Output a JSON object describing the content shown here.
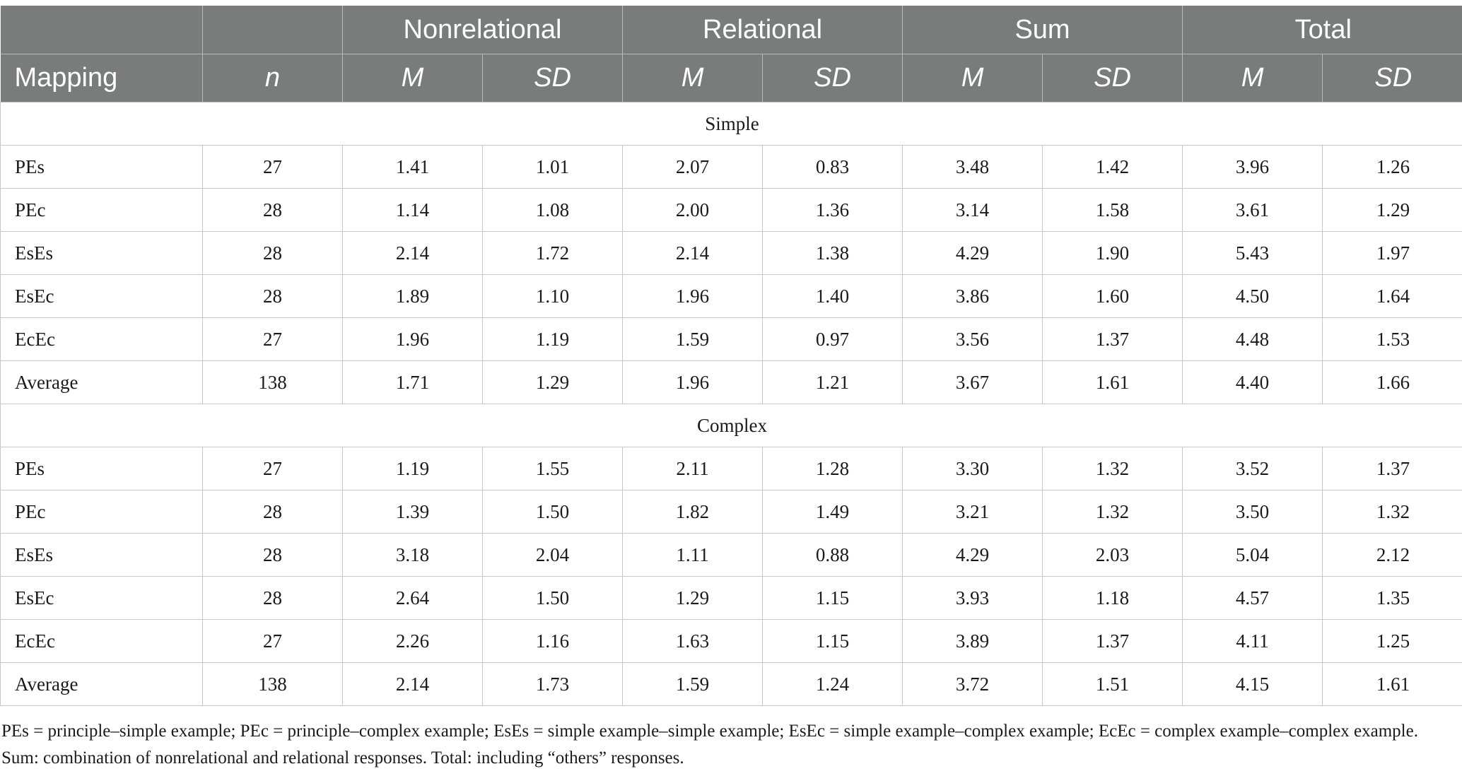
{
  "header": {
    "groups": [
      "Nonrelational",
      "Relational",
      "Sum",
      "Total"
    ],
    "mapping_label": "Mapping",
    "n_label": "n",
    "m_label": "M",
    "sd_label": "SD"
  },
  "sections": [
    {
      "title": "Simple",
      "rows": [
        {
          "mapping": "PEs",
          "n": "27",
          "values": [
            "1.41",
            "1.01",
            "2.07",
            "0.83",
            "3.48",
            "1.42",
            "3.96",
            "1.26"
          ]
        },
        {
          "mapping": "PEc",
          "n": "28",
          "values": [
            "1.14",
            "1.08",
            "2.00",
            "1.36",
            "3.14",
            "1.58",
            "3.61",
            "1.29"
          ]
        },
        {
          "mapping": "EsEs",
          "n": "28",
          "values": [
            "2.14",
            "1.72",
            "2.14",
            "1.38",
            "4.29",
            "1.90",
            "5.43",
            "1.97"
          ]
        },
        {
          "mapping": "EsEc",
          "n": "28",
          "values": [
            "1.89",
            "1.10",
            "1.96",
            "1.40",
            "3.86",
            "1.60",
            "4.50",
            "1.64"
          ]
        },
        {
          "mapping": "EcEc",
          "n": "27",
          "values": [
            "1.96",
            "1.19",
            "1.59",
            "0.97",
            "3.56",
            "1.37",
            "4.48",
            "1.53"
          ]
        },
        {
          "mapping": "Average",
          "n": "138",
          "values": [
            "1.71",
            "1.29",
            "1.96",
            "1.21",
            "3.67",
            "1.61",
            "4.40",
            "1.66"
          ]
        }
      ]
    },
    {
      "title": "Complex",
      "rows": [
        {
          "mapping": "PEs",
          "n": "27",
          "values": [
            "1.19",
            "1.55",
            "2.11",
            "1.28",
            "3.30",
            "1.32",
            "3.52",
            "1.37"
          ]
        },
        {
          "mapping": "PEc",
          "n": "28",
          "values": [
            "1.39",
            "1.50",
            "1.82",
            "1.49",
            "3.21",
            "1.32",
            "3.50",
            "1.32"
          ]
        },
        {
          "mapping": "EsEs",
          "n": "28",
          "values": [
            "3.18",
            "2.04",
            "1.11",
            "0.88",
            "4.29",
            "2.03",
            "5.04",
            "2.12"
          ]
        },
        {
          "mapping": "EsEc",
          "n": "28",
          "values": [
            "2.64",
            "1.50",
            "1.29",
            "1.15",
            "3.93",
            "1.18",
            "4.57",
            "1.35"
          ]
        },
        {
          "mapping": "EcEc",
          "n": "27",
          "values": [
            "2.26",
            "1.16",
            "1.63",
            "1.15",
            "3.89",
            "1.37",
            "4.11",
            "1.25"
          ]
        },
        {
          "mapping": "Average",
          "n": "138",
          "values": [
            "2.14",
            "1.73",
            "1.59",
            "1.24",
            "3.72",
            "1.51",
            "4.15",
            "1.61"
          ]
        }
      ]
    }
  ],
  "footnote": "PEs = principle–simple example; PEc = principle–complex example; EsEs = simple example–simple example; EsEc = simple example–complex example; EcEc = complex example–complex example. Sum: combination of nonrelational and relational responses. Total: including “others” responses.",
  "colors": {
    "header_bg": "#7a7c7b",
    "header_text": "#ffffff",
    "grid": "#c7c7c7",
    "body_text": "#1a1a1a"
  }
}
